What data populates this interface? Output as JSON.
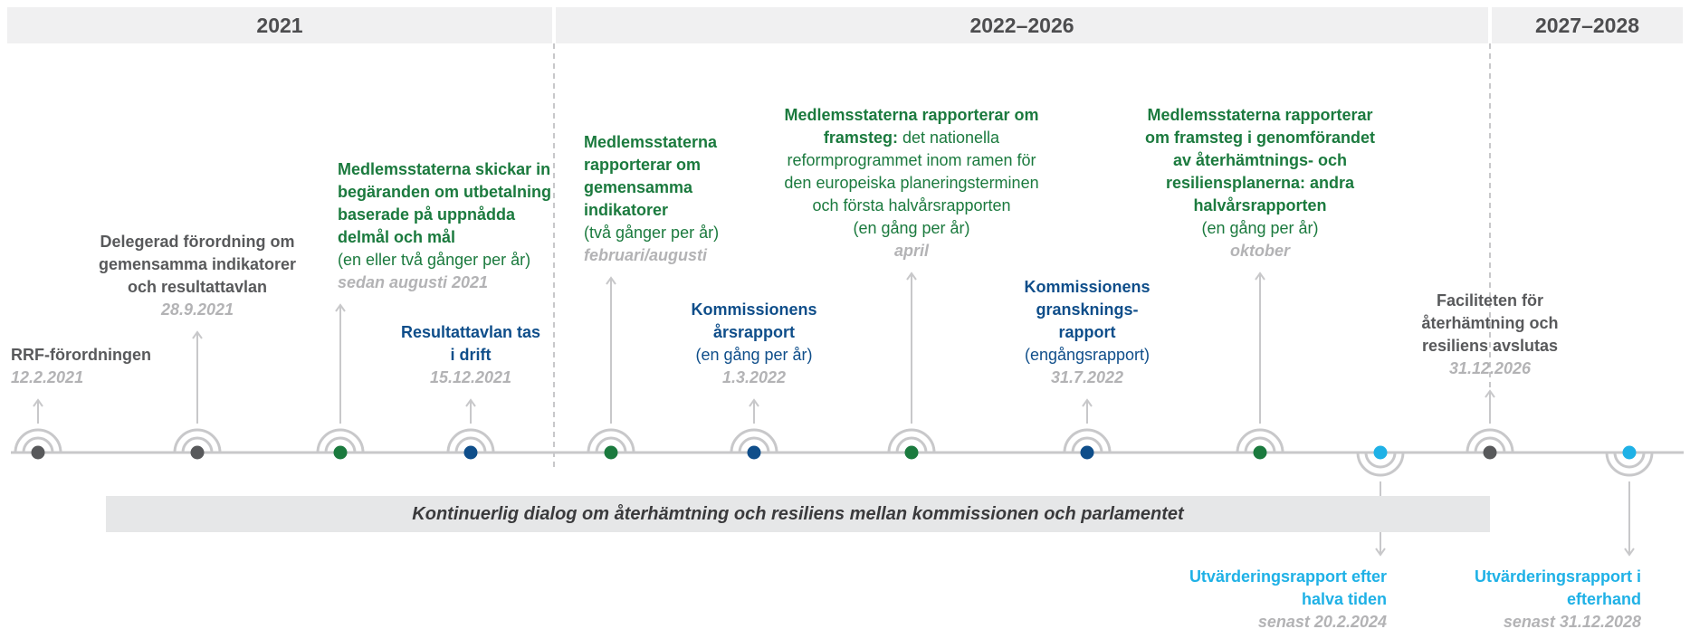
{
  "periods": [
    "2021",
    "2022–2026",
    "2027–2028"
  ],
  "dialog": "Kontinuerlig dialog om återhämtning och resiliens mellan kommissionen och parlamentet",
  "events": [
    {
      "title": "RRF-förordningen",
      "date": "12.2.2021",
      "color": "#58595b"
    },
    {
      "title": "Delegerad förordning om gemensamma indikatorer och resultattavlan",
      "date": "28.9.2021",
      "color": "#58595b"
    },
    {
      "title": "Medlemsstaterna skickar in begäranden om utbetalning baserade på uppnådda delmål och mål",
      "text": "(en eller två gånger per år)",
      "date": "sedan augusti 2021",
      "color": "#1b7a3e"
    },
    {
      "title": "Resultattavlan tas i drift",
      "date": "15.12.2021",
      "color": "#0f4e8a"
    },
    {
      "title": "Medlemsstaterna rapporterar om gemensamma indikatorer",
      "text": "(två gånger per år)",
      "date": "februari/augusti",
      "color": "#1b7a3e"
    },
    {
      "title": "Kommissionens årsrapport",
      "text": "(en gång per år)",
      "date": "1.3.2022",
      "color": "#0f4e8a"
    },
    {
      "title": "Medlemsstaterna rapporterar om framsteg:",
      "inline": "det nationella reformprogrammet inom ramen för den europeiska planeringsterminen och första halvårsrapporten",
      "text": "(en gång per år)",
      "date": "april",
      "color": "#1b7a3e"
    },
    {
      "title": "Kommissionens gransknings-rapport",
      "text": "(engångsrapport)",
      "date": "31.7.2022",
      "color": "#0f4e8a"
    },
    {
      "title": "Medlemsstaterna rapporterar om framsteg i genomförandet av återhämtnings- och resiliensplanerna: andra halvårsrapporten",
      "text": "(en gång per år)",
      "date": "oktober",
      "color": "#1b7a3e"
    },
    {
      "title": "Utvärderingsrapport efter halva tiden",
      "date": "senast 20.2.2024",
      "color": "#1fb1e6"
    },
    {
      "title": "Faciliteten för återhämtning och resiliens avslutas",
      "date": "31.12.2026",
      "color": "#58595b"
    },
    {
      "title": "Utvärderingsrapport i efterhand",
      "date": "senast 31.12.2028",
      "color": "#1fb1e6"
    }
  ]
}
